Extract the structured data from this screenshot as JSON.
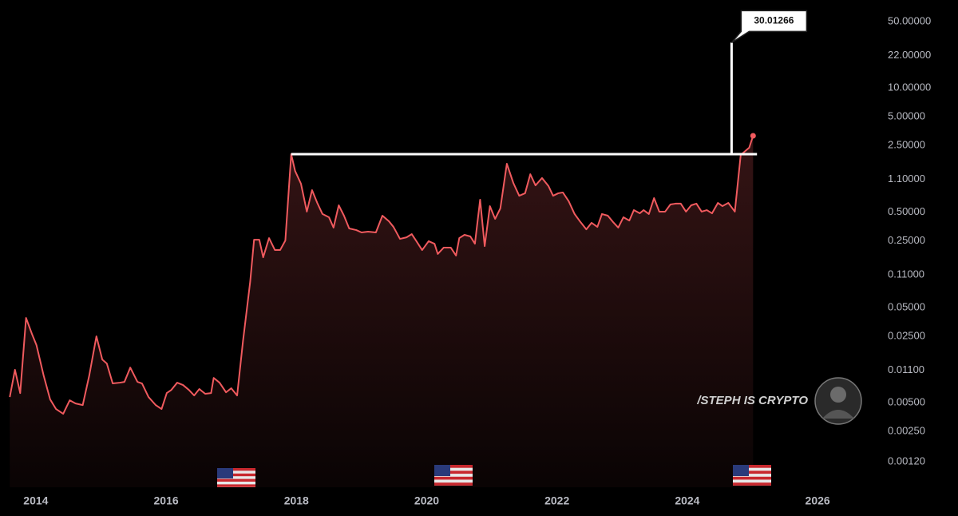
{
  "chart_data": {
    "type": "line",
    "log_y": true,
    "grid": false,
    "watermark": "/STEPH IS CRYPTO",
    "series": [
      {
        "color": "#f05a5e",
        "x": [
          2013.6,
          2013.68,
          2013.76,
          2013.85,
          2013.94,
          2014.01,
          2014.12,
          2014.22,
          2014.31,
          2014.42,
          2014.52,
          2014.61,
          2014.72,
          2014.82,
          2014.93,
          2015.02,
          2015.09,
          2015.18,
          2015.29,
          2015.36,
          2015.45,
          2015.56,
          2015.63,
          2015.73,
          2015.84,
          2015.93,
          2016.01,
          2016.08,
          2016.17,
          2016.26,
          2016.35,
          2016.43,
          2016.51,
          2016.6,
          2016.69,
          2016.73,
          2016.82,
          2016.92,
          2017.0,
          2017.09,
          2017.18,
          2017.29,
          2017.35,
          2017.43,
          2017.49,
          2017.58,
          2017.67,
          2017.75,
          2017.83,
          2017.92,
          2017.98,
          2018.07,
          2018.16,
          2018.24,
          2018.32,
          2018.4,
          2018.5,
          2018.57,
          2018.65,
          2018.73,
          2018.81,
          2018.92,
          2019.0,
          2019.1,
          2019.22,
          2019.32,
          2019.42,
          2019.49,
          2019.59,
          2019.69,
          2019.77,
          2019.85,
          2019.93,
          2020.03,
          2020.12,
          2020.17,
          2020.26,
          2020.37,
          2020.45,
          2020.5,
          2020.58,
          2020.67,
          2020.74,
          2020.82,
          2020.89,
          2020.97,
          2021.05,
          2021.13,
          2021.23,
          2021.33,
          2021.42,
          2021.51,
          2021.59,
          2021.67,
          2021.77,
          2021.87,
          2021.94,
          2022.02,
          2022.09,
          2022.18,
          2022.27,
          2022.36,
          2022.45,
          2022.53,
          2022.62,
          2022.69,
          2022.78,
          2022.86,
          2022.94,
          2023.02,
          2023.11,
          2023.18,
          2023.27,
          2023.33,
          2023.41,
          2023.49,
          2023.57,
          2023.66,
          2023.74,
          2023.82,
          2023.9,
          2023.98,
          2024.06,
          2024.14,
          2024.22,
          2024.3,
          2024.38,
          2024.47,
          2024.54,
          2024.63,
          2024.73,
          2024.82,
          2024.95,
          2025.01
        ],
        "values": [
          0.00574,
          0.0111,
          0.00632,
          0.0388,
          0.0264,
          0.0201,
          0.00966,
          0.00542,
          0.0043,
          0.00383,
          0.00531,
          0.00492,
          0.00473,
          0.00966,
          0.0249,
          0.0142,
          0.0129,
          0.00798,
          0.00813,
          0.00828,
          0.0117,
          0.00828,
          0.00798,
          0.00574,
          0.00473,
          0.0043,
          0.00632,
          0.00682,
          0.00813,
          0.00767,
          0.00682,
          0.00597,
          0.00697,
          0.00621,
          0.00632,
          0.00912,
          0.00813,
          0.00644,
          0.0071,
          0.00597,
          0.0222,
          0.0925,
          0.257,
          0.257,
          0.168,
          0.267,
          0.2,
          0.2,
          0.252,
          2.03,
          1.35,
          0.993,
          0.506,
          0.851,
          0.625,
          0.478,
          0.442,
          0.344,
          0.59,
          0.459,
          0.337,
          0.324,
          0.306,
          0.312,
          0.306,
          0.459,
          0.401,
          0.35,
          0.262,
          0.272,
          0.294,
          0.243,
          0.2,
          0.248,
          0.233,
          0.182,
          0.212,
          0.212,
          0.175,
          0.267,
          0.289,
          0.278,
          0.233,
          0.675,
          0.22,
          0.578,
          0.425,
          0.546,
          1.61,
          1.01,
          0.743,
          0.789,
          1.25,
          0.955,
          1.14,
          0.937,
          0.743,
          0.789,
          0.804,
          0.65,
          0.478,
          0.394,
          0.33,
          0.386,
          0.35,
          0.478,
          0.459,
          0.394,
          0.344,
          0.442,
          0.408,
          0.525,
          0.486,
          0.525,
          0.478,
          0.702,
          0.506,
          0.506,
          0.601,
          0.614,
          0.614,
          0.506,
          0.59,
          0.614,
          0.506,
          0.525,
          0.486,
          0.625,
          0.578,
          0.625,
          0.506,
          1.99,
          2.37,
          3.16
        ]
      }
    ],
    "annotations": [
      {
        "type": "hline",
        "y": 2.03,
        "x": [
          2017.92,
          2025.07
        ]
      },
      {
        "type": "callout",
        "x": 2024.68,
        "base": 2.03,
        "value": 30.01266
      }
    ],
    "xlim": [
      2013.45,
      2026.93
    ],
    "xticks": [
      2014,
      2016,
      2018,
      2020,
      2022,
      2024,
      2026
    ],
    "ylim": [
      0.00065,
      84
    ],
    "yticks": [
      {
        "value": 50,
        "label": "50.00000"
      },
      {
        "value": 22,
        "label": "22.00000"
      },
      {
        "value": 10,
        "label": "10.00000"
      },
      {
        "value": 5,
        "label": "5.00000"
      },
      {
        "value": 2.5,
        "label": "2.50000"
      },
      {
        "value": 1.1,
        "label": "1.10000"
      },
      {
        "value": 0.5,
        "label": "0.50000"
      },
      {
        "value": 0.25,
        "label": "0.25000"
      },
      {
        "value": 0.11,
        "label": "0.11000"
      },
      {
        "value": 0.05,
        "label": "0.05000"
      },
      {
        "value": 0.025,
        "label": "0.02500"
      },
      {
        "value": 0.011,
        "label": "0.01100"
      },
      {
        "value": 0.005,
        "label": "0.00500"
      },
      {
        "value": 0.0025,
        "label": "0.00250"
      },
      {
        "value": 0.0012,
        "label": "0.00120"
      }
    ]
  }
}
